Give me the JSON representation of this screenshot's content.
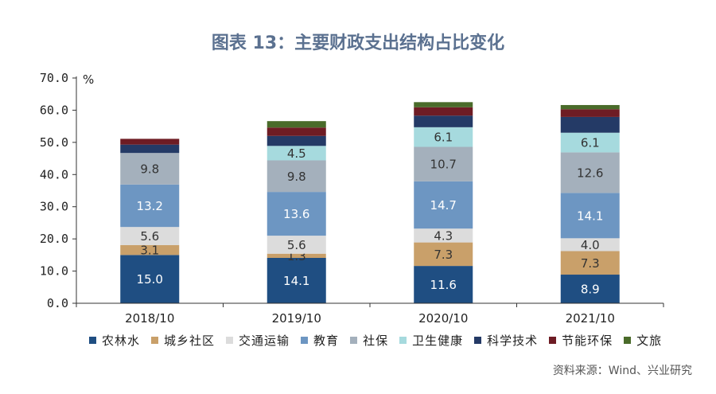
{
  "chart_data": {
    "type": "bar",
    "stacked": true,
    "title": "图表 13：主要财政支出结构占比变化",
    "ylabel": "%",
    "ylim": [
      0,
      70
    ],
    "yticks": [
      "0.0",
      "10.0",
      "20.0",
      "30.0",
      "40.0",
      "50.0",
      "60.0",
      "70.0"
    ],
    "categories": [
      "2018/10",
      "2019/10",
      "2020/10",
      "2021/10"
    ],
    "series": [
      {
        "name": "农林水",
        "color": "#1f4e82",
        "values": [
          15.0,
          14.1,
          11.6,
          8.9
        ],
        "labels": [
          "15.0",
          "14.1",
          "11.6",
          "8.9"
        ],
        "label_color": "#ffffff"
      },
      {
        "name": "城乡社区",
        "color": "#c9a06a",
        "values": [
          3.1,
          1.3,
          7.3,
          7.3
        ],
        "labels": [
          "3.1",
          "1.3",
          "7.3",
          "7.3"
        ],
        "label_color": "#333333"
      },
      {
        "name": "交通运输",
        "color": "#dcdcdc",
        "values": [
          5.6,
          5.6,
          4.3,
          4.0
        ],
        "labels": [
          "5.6",
          "5.6",
          "4.3",
          "4.0"
        ],
        "label_color": "#333333"
      },
      {
        "name": "教育",
        "color": "#6d96c2",
        "values": [
          13.2,
          13.6,
          14.7,
          14.1
        ],
        "labels": [
          "13.2",
          "13.6",
          "14.7",
          "14.1"
        ],
        "label_color": "#ffffff"
      },
      {
        "name": "社保",
        "color": "#a4b0bc",
        "values": [
          9.8,
          9.8,
          10.7,
          12.6
        ],
        "labels": [
          "9.8",
          "9.8",
          "10.7",
          "12.6"
        ],
        "label_color": "#333333"
      },
      {
        "name": "卫生健康",
        "color": "#a6dade",
        "values": [
          0,
          4.5,
          6.1,
          6.1
        ],
        "labels": [
          "",
          "4.5",
          "6.1",
          "6.1"
        ],
        "label_color": "#333333"
      },
      {
        "name": "科学技术",
        "color": "#243a66",
        "values": [
          2.6,
          3.1,
          3.6,
          4.9
        ],
        "labels": [
          "",
          "",
          "",
          ""
        ],
        "label_color": "#ffffff"
      },
      {
        "name": "节能环保",
        "color": "#6e1c24",
        "values": [
          1.8,
          2.6,
          2.6,
          2.4
        ],
        "labels": [
          "",
          "",
          "",
          ""
        ],
        "label_color": "#ffffff"
      },
      {
        "name": "文旅",
        "color": "#4a6b2a",
        "values": [
          0,
          2.0,
          1.6,
          1.3
        ],
        "labels": [
          "",
          "",
          "",
          ""
        ],
        "label_color": "#ffffff"
      }
    ]
  },
  "source": "资料来源：Wind、兴业研究"
}
